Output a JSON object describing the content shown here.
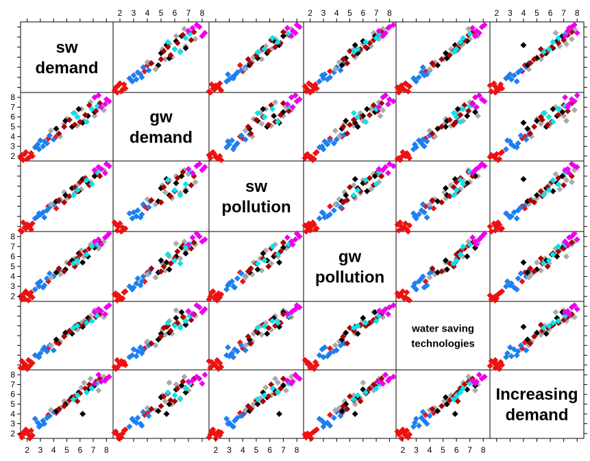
{
  "chart_data": {
    "type": "scatter",
    "title": "",
    "variables": [
      "sw demand",
      "gw demand",
      "sw pollution",
      "gw pollution",
      "water saving technologies",
      "Increasing demand"
    ],
    "diagonal_labels": [
      [
        "sw",
        "demand"
      ],
      [
        "gw",
        "demand"
      ],
      [
        "sw",
        "pollution"
      ],
      [
        "gw",
        "pollution"
      ],
      [
        "water saving",
        "technologies"
      ],
      [
        "Increasing",
        "demand"
      ]
    ],
    "axis_range": [
      1.5,
      8.5
    ],
    "tick_values": [
      "2",
      "3",
      "4",
      "5",
      "6",
      "7",
      "8"
    ],
    "marker": "diamond",
    "group_colors": [
      "#ee1111",
      "#1e7fef",
      "#aaaaaa",
      "#000000",
      "#aa0000",
      "#00e5ee",
      "#ee00ee"
    ],
    "groups": [
      {
        "color": "#ee1111",
        "points": [
          [
            1.5,
            1.8,
            1.6,
            2.0,
            1.7,
            1.9
          ],
          [
            1.8,
            2.2,
            1.9,
            1.8,
            2.1,
            2.0
          ],
          [
            2.0,
            1.7,
            2.2,
            2.3,
            1.6,
            2.2
          ],
          [
            1.6,
            2.1,
            1.5,
            1.7,
            2.4,
            1.6
          ],
          [
            2.2,
            1.9,
            2.0,
            2.1,
            1.9,
            1.5
          ],
          [
            1.9,
            2.4,
            1.8,
            2.5,
            2.0,
            2.4
          ],
          [
            2.4,
            2.0,
            2.3,
            1.9,
            2.2,
            1.8
          ],
          [
            1.7,
            1.6,
            2.4,
            2.2,
            1.8,
            2.1
          ],
          [
            2.3,
            2.3,
            1.7,
            2.4,
            2.3,
            2.3
          ],
          [
            2.1,
            1.8,
            2.1,
            1.6,
            2.5,
            1.9
          ],
          [
            3.6,
            3.8,
            4.0,
            3.5,
            3.7,
            3.9
          ],
          [
            4.2,
            4.0,
            3.8,
            4.4,
            4.3,
            4.1
          ]
        ]
      },
      {
        "color": "#1e7fef",
        "points": [
          [
            2.8,
            3.2,
            3.0,
            3.3,
            2.9,
            3.1
          ],
          [
            3.2,
            3.0,
            3.4,
            2.9,
            3.6,
            3.3
          ],
          [
            3.0,
            3.6,
            3.2,
            3.5,
            3.2,
            2.8
          ],
          [
            3.5,
            3.3,
            3.6,
            3.8,
            3.4,
            3.6
          ],
          [
            2.6,
            2.9,
            2.8,
            2.7,
            3.0,
            3.5
          ],
          [
            3.3,
            3.5,
            2.9,
            3.1,
            3.8,
            3.0
          ],
          [
            4.0,
            3.7,
            4.2,
            4.0,
            3.5,
            4.2
          ],
          [
            3.7,
            4.1,
            3.9,
            4.3,
            4.0,
            3.8
          ],
          [
            2.9,
            2.7,
            3.3,
            3.0,
            2.8,
            2.7
          ],
          [
            4.4,
            4.2,
            4.5,
            4.6,
            4.2,
            4.4
          ]
        ]
      },
      {
        "color": "#aaaaaa",
        "points": [
          [
            4.5,
            4.0,
            4.7,
            4.2,
            4.4,
            4.6
          ],
          [
            5.6,
            6.4,
            5.3,
            5.8,
            6.0,
            5.6
          ],
          [
            6.3,
            5.6,
            6.6,
            6.0,
            6.5,
            7.2
          ],
          [
            7.4,
            7.0,
            7.2,
            6.8,
            7.4,
            6.4
          ],
          [
            5.0,
            5.8,
            4.8,
            5.4,
            5.2,
            5.0
          ],
          [
            6.8,
            7.5,
            6.4,
            7.2,
            7.0,
            7.6
          ],
          [
            3.8,
            4.6,
            4.2,
            3.9,
            4.0,
            4.4
          ],
          [
            5.8,
            5.1,
            6.1,
            5.3,
            5.6,
            5.9
          ],
          [
            7.8,
            6.7,
            7.6,
            7.5,
            6.9,
            7.8
          ],
          [
            6.1,
            6.8,
            5.7,
            6.6,
            6.3,
            6.7
          ],
          [
            4.8,
            5.3,
            5.4,
            4.6,
            5.1,
            5.3
          ],
          [
            7.1,
            6.1,
            7.0,
            7.3,
            7.6,
            7.0
          ]
        ]
      },
      {
        "color": "#000000",
        "points": [
          [
            4.2,
            4.8,
            4.5,
            4.4,
            4.6,
            4.3
          ],
          [
            5.4,
            5.0,
            5.8,
            5.6,
            5.2,
            5.7
          ],
          [
            6.6,
            6.1,
            6.3,
            6.0,
            6.8,
            6.5
          ],
          [
            5.9,
            6.8,
            5.5,
            6.3,
            6.1,
            6.2
          ],
          [
            7.1,
            6.5,
            7.0,
            6.9,
            7.4,
            6.9
          ],
          [
            4.9,
            5.6,
            5.1,
            4.7,
            5.3,
            5.0
          ],
          [
            6.2,
            5.4,
            6.7,
            5.4,
            5.9,
            4.0
          ]
        ]
      },
      {
        "color": "#aa0000",
        "points": [
          [
            4.4,
            4.3,
            4.6,
            4.8,
            4.2,
            4.5
          ],
          [
            5.2,
            5.7,
            5.0,
            5.3,
            5.5,
            5.4
          ],
          [
            6.0,
            5.5,
            6.4,
            6.2,
            6.0,
            6.1
          ],
          [
            6.7,
            7.2,
            6.1,
            6.8,
            6.6,
            7.0
          ],
          [
            5.6,
            5.2,
            5.9,
            5.0,
            5.8,
            5.8
          ],
          [
            7.2,
            6.6,
            7.4,
            7.1,
            6.9,
            7.3
          ],
          [
            4.8,
            5.0,
            4.4,
            4.5,
            4.9,
            4.8
          ],
          [
            6.4,
            6.2,
            6.8,
            6.5,
            6.3,
            6.6
          ],
          [
            5.8,
            6.0,
            5.5,
            5.8,
            6.1,
            5.3
          ],
          [
            7.5,
            7.4,
            7.0,
            7.4,
            7.2,
            7.6
          ]
        ]
      },
      {
        "color": "#00e5ee",
        "points": [
          [
            5.8,
            6.0,
            5.6,
            5.6,
            6.0,
            5.9
          ],
          [
            6.5,
            5.5,
            6.6,
            6.2,
            6.3,
            6.2
          ],
          [
            6.9,
            6.8,
            6.2,
            7.0,
            6.5,
            6.6
          ],
          [
            5.5,
            6.4,
            5.1,
            5.3,
            5.8,
            5.5
          ],
          [
            7.3,
            7.1,
            7.4,
            7.2,
            7.0,
            7.1
          ]
        ]
      },
      {
        "color": "#ee00ee",
        "points": [
          [
            7.6,
            7.0,
            7.7,
            7.2,
            7.5,
            7.3
          ],
          [
            8.0,
            7.8,
            8.2,
            8.0,
            7.9,
            7.6
          ],
          [
            7.4,
            8.2,
            7.9,
            7.7,
            7.7,
            8.0
          ],
          [
            7.9,
            7.3,
            7.3,
            7.9,
            7.2,
            7.4
          ],
          [
            8.2,
            7.6,
            8.0,
            8.3,
            8.1,
            7.8
          ],
          [
            7.1,
            8.0,
            7.6,
            7.5,
            7.4,
            7.1
          ]
        ]
      }
    ]
  }
}
